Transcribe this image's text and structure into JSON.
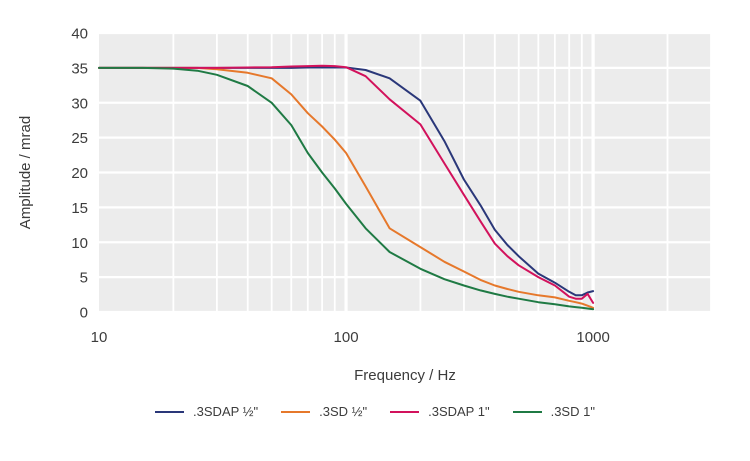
{
  "figure": {
    "background": "#ffffff",
    "plot_background": "#ececec",
    "grid_color": "#ffffff",
    "text_color": "#3c3c3c"
  },
  "axes": {
    "y": {
      "title": "Amplitude / mrad",
      "min": 0,
      "max": 40,
      "ticks": [
        0,
        5,
        10,
        15,
        20,
        25,
        30,
        35,
        40
      ]
    },
    "x": {
      "title": "Frequency / Hz",
      "scale": "log",
      "min": 10,
      "max": 3000,
      "labeled_ticks": [
        10,
        100,
        1000
      ],
      "major_gridlines": [
        100,
        1000
      ],
      "minor_gridlines": [
        20,
        30,
        40,
        50,
        60,
        70,
        80,
        90,
        200,
        300,
        400,
        500,
        600,
        700,
        800,
        900,
        2000,
        3000
      ]
    }
  },
  "chart_data": {
    "type": "line",
    "title": "",
    "xlabel": "Frequency / Hz",
    "ylabel": "Amplitude / mrad",
    "xscale": "log",
    "xlim": [
      10,
      3000
    ],
    "ylim": [
      0,
      40
    ],
    "grid": true,
    "legend_position": "bottom",
    "x": [
      10,
      15,
      20,
      25,
      30,
      40,
      50,
      60,
      70,
      80,
      90,
      100,
      120,
      150,
      200,
      250,
      300,
      350,
      400,
      450,
      500,
      600,
      700,
      800,
      850,
      900,
      950,
      1000
    ],
    "series": [
      {
        "name": ".3SDAP ½\"",
        "color": "#2a3779",
        "values": [
          35,
          35,
          35,
          35,
          35,
          35,
          35,
          35,
          35.05,
          35.05,
          35.05,
          35.05,
          34.7,
          33.5,
          30.3,
          24.5,
          19,
          15.3,
          11.8,
          9.6,
          8,
          5.5,
          4.2,
          2.9,
          2.4,
          2.4,
          2.8,
          3
        ]
      },
      {
        "name": ".3SD ½\"",
        "color": "#e6782b",
        "values": [
          35,
          35,
          35,
          35,
          34.8,
          34.3,
          33.5,
          31.2,
          28.5,
          26.6,
          24.7,
          22.8,
          18,
          12,
          9.3,
          7.2,
          5.8,
          4.6,
          3.8,
          3.3,
          2.9,
          2.4,
          2.1,
          1.6,
          1.4,
          1.2,
          0.9,
          0.6
        ]
      },
      {
        "name": ".3SDAP 1\"",
        "color": "#d2125c",
        "values": [
          35,
          35,
          35,
          35,
          35,
          35.05,
          35.1,
          35.2,
          35.25,
          35.3,
          35.25,
          35.1,
          33.8,
          30.5,
          26.9,
          21.3,
          16.8,
          13,
          9.8,
          8,
          6.7,
          5,
          3.8,
          2.2,
          1.9,
          1.9,
          2.6,
          1.3
        ]
      },
      {
        "name": ".3SD 1\"",
        "color": "#1f7a44",
        "values": [
          35,
          35,
          34.9,
          34.6,
          34,
          32.4,
          30,
          26.8,
          22.8,
          20,
          17.7,
          15.5,
          12,
          8.6,
          6.2,
          4.7,
          3.8,
          3.1,
          2.6,
          2.2,
          1.9,
          1.4,
          1.1,
          0.8,
          0.7,
          0.6,
          0.5,
          0.4
        ]
      }
    ]
  }
}
